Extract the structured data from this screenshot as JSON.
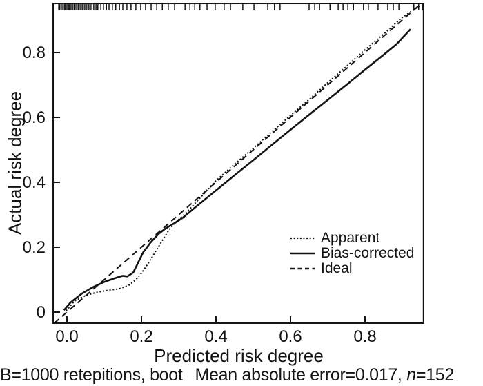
{
  "chart_data": {
    "type": "line",
    "xlabel": "Predicted risk degree",
    "ylabel": "Actual risk degree",
    "xlim": [
      -0.037,
      0.957
    ],
    "ylim": [
      -0.034,
      0.951
    ],
    "grid": false,
    "x_ticks": {
      "values": [
        0.0,
        0.2,
        0.4,
        0.6,
        0.8
      ],
      "labels": [
        "0.0",
        "0.2",
        "0.4",
        "0.6",
        "0.8"
      ]
    },
    "y_ticks": {
      "values": [
        0.0,
        0.2,
        0.4,
        0.6,
        0.8
      ],
      "labels": [
        "0",
        "0.2",
        "0.4",
        "0.6",
        "0.8"
      ]
    },
    "series": [
      {
        "name": "Apparent",
        "style": "dotted",
        "points": [
          [
            -0.002,
            0.004
          ],
          [
            0.02,
            0.034
          ],
          [
            0.05,
            0.051
          ],
          [
            0.08,
            0.061
          ],
          [
            0.11,
            0.067
          ],
          [
            0.14,
            0.072
          ],
          [
            0.165,
            0.082
          ],
          [
            0.185,
            0.1
          ],
          [
            0.2,
            0.12
          ],
          [
            0.215,
            0.145
          ],
          [
            0.23,
            0.172
          ],
          [
            0.245,
            0.2
          ],
          [
            0.26,
            0.228
          ],
          [
            0.275,
            0.255
          ],
          [
            0.29,
            0.275
          ],
          [
            0.32,
            0.306
          ],
          [
            0.36,
            0.355
          ],
          [
            0.4,
            0.405
          ],
          [
            0.45,
            0.456
          ],
          [
            0.5,
            0.505
          ],
          [
            0.55,
            0.556
          ],
          [
            0.6,
            0.606
          ],
          [
            0.65,
            0.655
          ],
          [
            0.7,
            0.707
          ],
          [
            0.75,
            0.757
          ],
          [
            0.8,
            0.808
          ],
          [
            0.85,
            0.857
          ],
          [
            0.9,
            0.908
          ],
          [
            0.948,
            0.945
          ]
        ]
      },
      {
        "name": "Bias-corrected",
        "style": "solid",
        "points": [
          [
            -0.008,
            0.006
          ],
          [
            0.01,
            0.03
          ],
          [
            0.04,
            0.057
          ],
          [
            0.07,
            0.077
          ],
          [
            0.1,
            0.093
          ],
          [
            0.13,
            0.105
          ],
          [
            0.15,
            0.112
          ],
          [
            0.162,
            0.11
          ],
          [
            0.178,
            0.122
          ],
          [
            0.19,
            0.15
          ],
          [
            0.205,
            0.185
          ],
          [
            0.225,
            0.215
          ],
          [
            0.245,
            0.24
          ],
          [
            0.265,
            0.258
          ],
          [
            0.29,
            0.275
          ],
          [
            0.31,
            0.29
          ],
          [
            0.35,
            0.328
          ],
          [
            0.4,
            0.375
          ],
          [
            0.45,
            0.422
          ],
          [
            0.5,
            0.468
          ],
          [
            0.55,
            0.515
          ],
          [
            0.6,
            0.562
          ],
          [
            0.65,
            0.608
          ],
          [
            0.7,
            0.654
          ],
          [
            0.75,
            0.7
          ],
          [
            0.8,
            0.747
          ],
          [
            0.85,
            0.793
          ],
          [
            0.885,
            0.826
          ],
          [
            0.922,
            0.872
          ]
        ]
      },
      {
        "name": "Ideal",
        "style": "dashed",
        "points": [
          [
            -0.034,
            -0.034
          ],
          [
            0.951,
            0.951
          ]
        ]
      }
    ],
    "rug_x": [
      -0.022,
      -0.019,
      -0.015,
      -0.011,
      -0.007,
      -0.004,
      0,
      0.004,
      0.007,
      0.011,
      0.015,
      0.019,
      0.022,
      0.026,
      0.03,
      0.033,
      0.037,
      0.041,
      0.044,
      0.048,
      0.052,
      0.056,
      0.059,
      0.063,
      0.067,
      0.072,
      0.078,
      0.083,
      0.091,
      0.098,
      0.106,
      0.113,
      0.122,
      0.131,
      0.141,
      0.15,
      0.161,
      0.172,
      0.185,
      0.198,
      0.211,
      0.226,
      0.241,
      0.256,
      0.272,
      0.289,
      0.317,
      0.33,
      0.343,
      0.357,
      0.376,
      0.398,
      0.422,
      0.439,
      0.472,
      0.502,
      0.539,
      0.557,
      0.572,
      0.65,
      0.665,
      0.678,
      0.706,
      0.728,
      0.741,
      0.754,
      0.769,
      0.796,
      0.809,
      0.835,
      0.861,
      0.876,
      0.891,
      0.931,
      0.944,
      0.954
    ],
    "legend": {
      "position": "right-middle",
      "entries": [
        {
          "label": "Apparent",
          "style": "dotted"
        },
        {
          "label": "Bias-corrected",
          "style": "solid"
        },
        {
          "label": "Ideal",
          "style": "dashed"
        }
      ]
    },
    "annotation": {
      "left": "B=1000 retepitions, boot",
      "right_prefix": "Mean absolute error=0.017,",
      "n_var": "n",
      "n_value": "=152"
    },
    "ink_color": "#131313",
    "background": "#ffffff"
  }
}
